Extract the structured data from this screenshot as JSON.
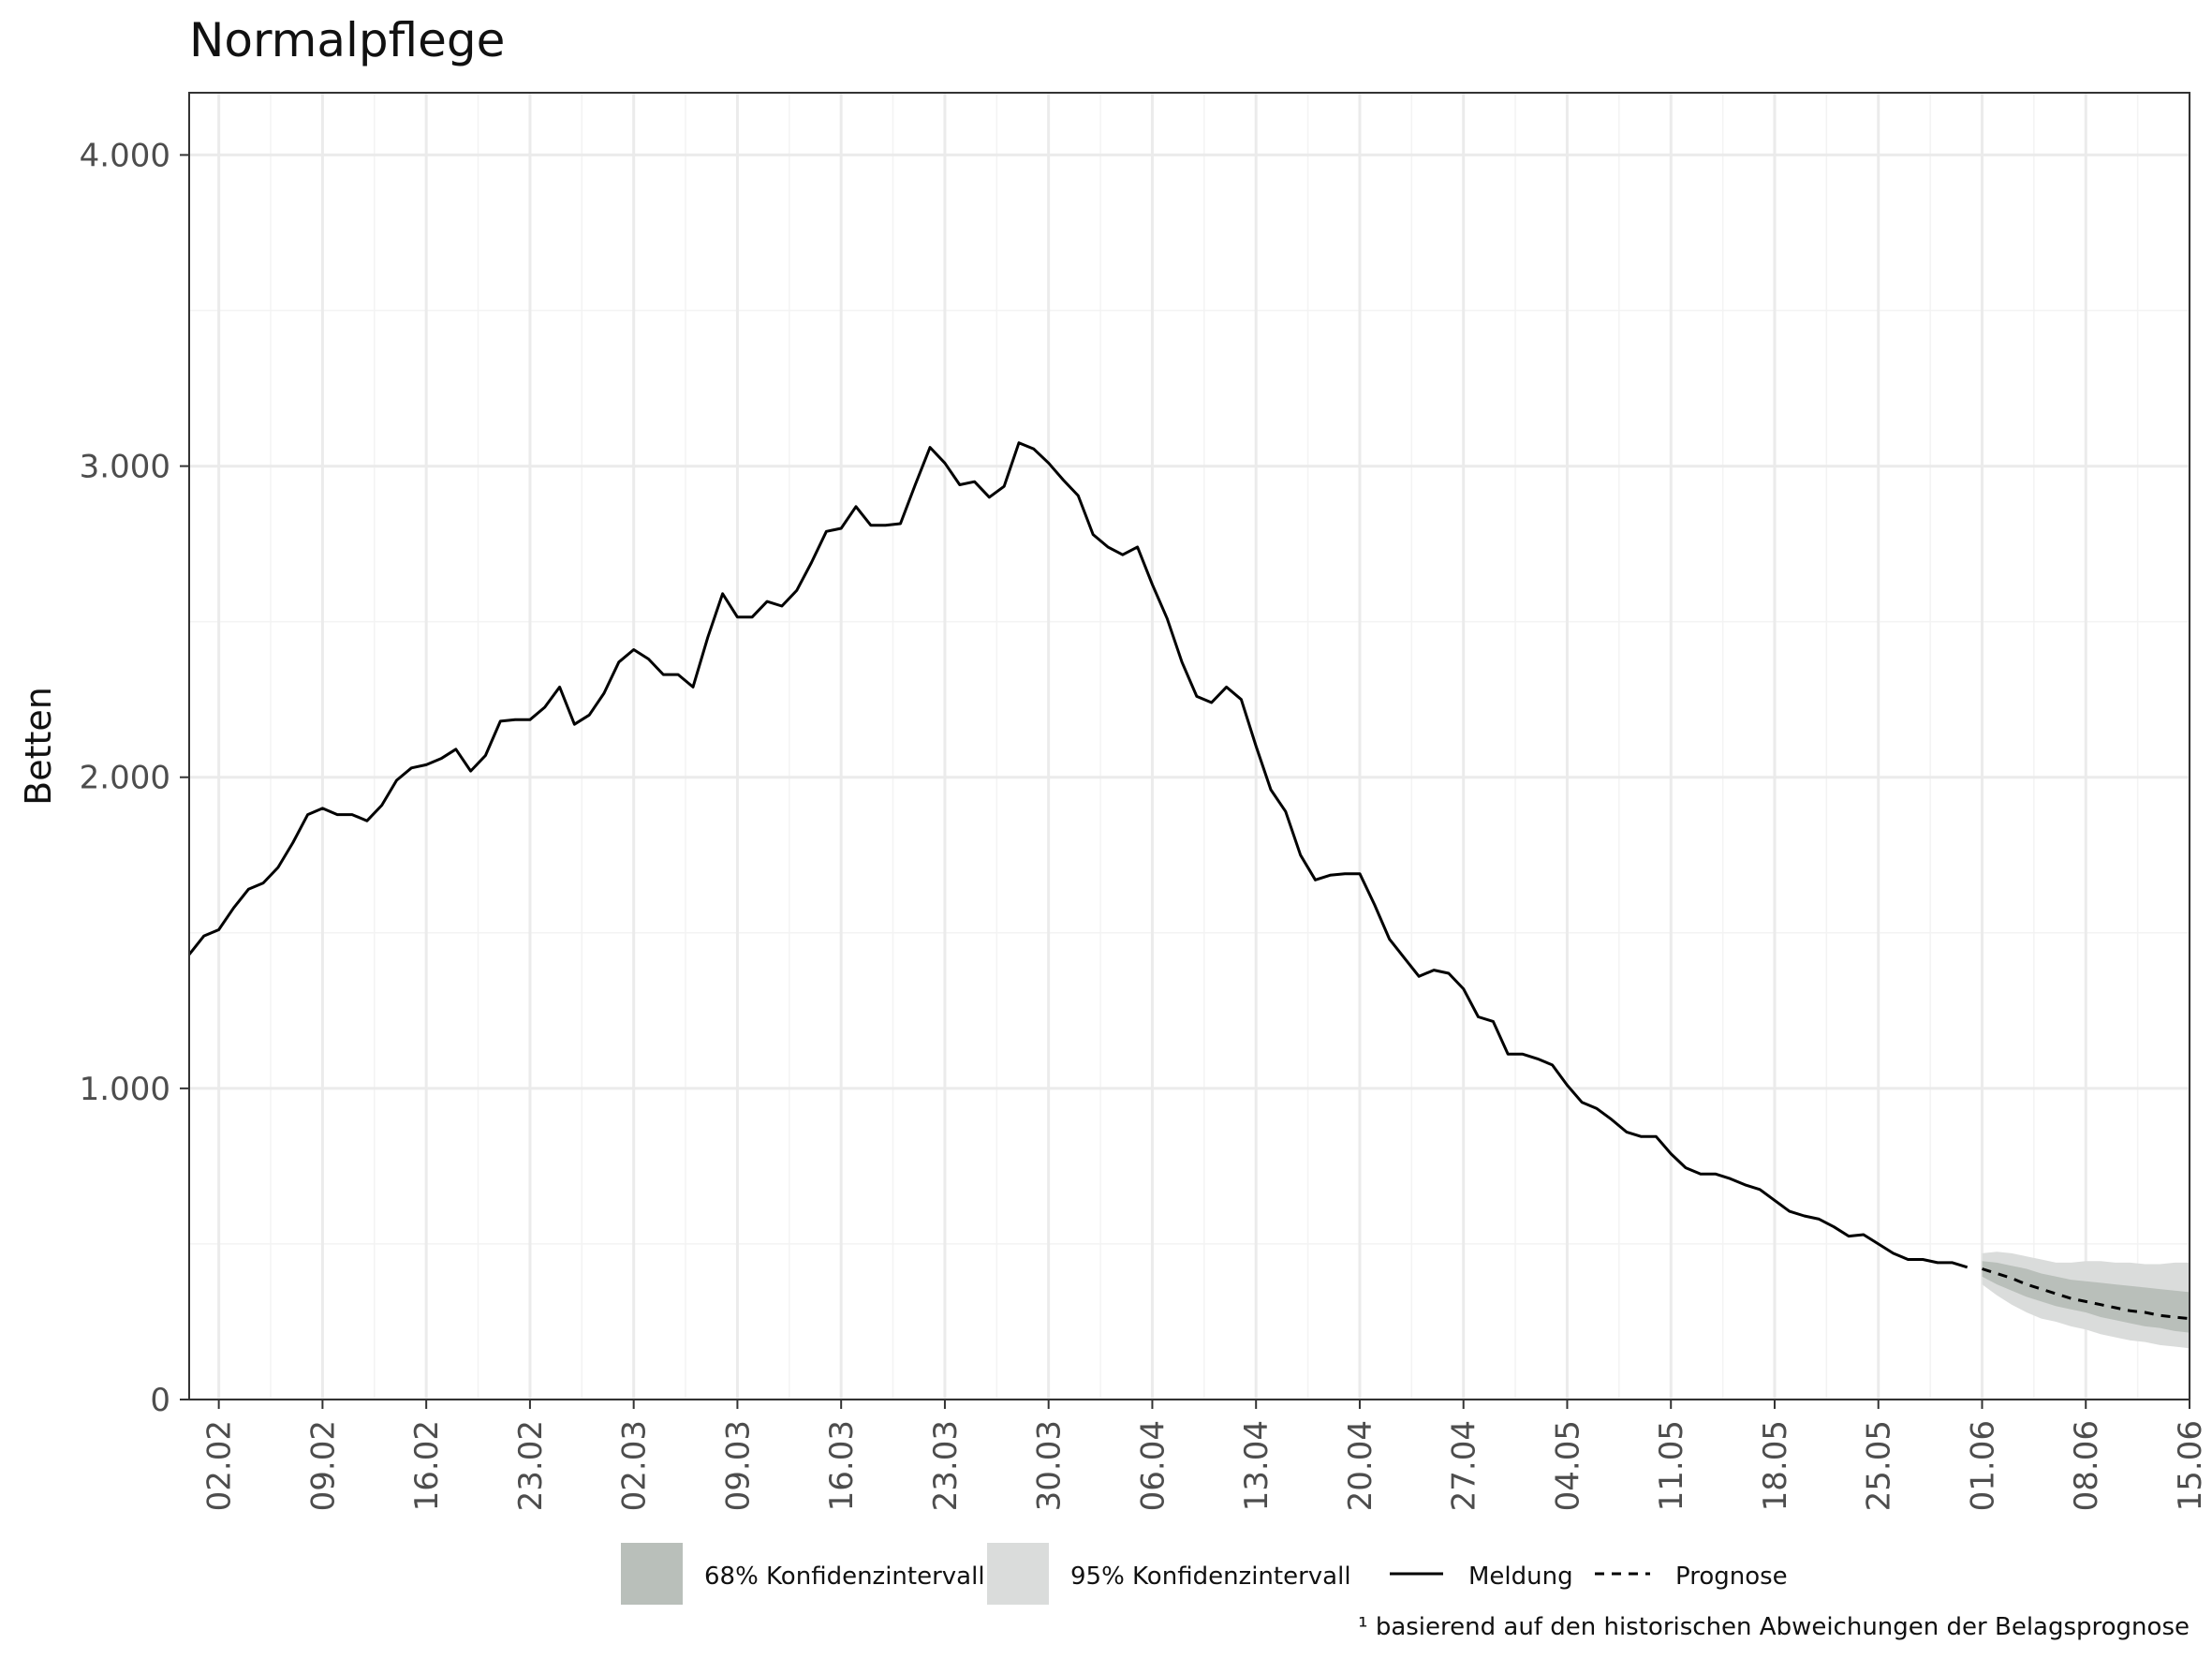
{
  "chart_data": {
    "type": "line",
    "title": "Normalpflege",
    "ylabel": "Betten",
    "xlabel": "",
    "ylim": [
      0,
      4200
    ],
    "yticks": [
      0,
      1000,
      2000,
      3000,
      4000
    ],
    "ytick_labels": [
      "0",
      "1.000",
      "2.000",
      "3.000",
      "4.000"
    ],
    "x_date_range": [
      "2021-01-31",
      "2021-06-15"
    ],
    "xticks": [
      "2021-02-02",
      "2021-02-09",
      "2021-02-16",
      "2021-02-23",
      "2021-03-02",
      "2021-03-09",
      "2021-03-16",
      "2021-03-23",
      "2021-03-30",
      "2021-04-06",
      "2021-04-13",
      "2021-04-20",
      "2021-04-27",
      "2021-05-04",
      "2021-05-11",
      "2021-05-18",
      "2021-05-25",
      "2021-06-01",
      "2021-06-08",
      "2021-06-15"
    ],
    "xtick_labels": [
      "02.02",
      "09.02",
      "16.02",
      "23.02",
      "02.03",
      "09.03",
      "16.03",
      "23.03",
      "30.03",
      "06.04",
      "13.04",
      "20.04",
      "27.04",
      "04.05",
      "11.05",
      "18.05",
      "25.05",
      "01.06",
      "08.06",
      "15.06"
    ],
    "grid": true,
    "legend_position": "bottom",
    "colors": {
      "line": "#000000",
      "ci68": "#b9bfba",
      "ci95": "#dadcdb",
      "grid": "#ebebeb",
      "panel_border": "#333333"
    },
    "series": [
      {
        "name": "Meldung",
        "style": "solid",
        "start_date": "2021-01-31",
        "values": [
          1430,
          1490,
          1510,
          1580,
          1640,
          1660,
          1710,
          1790,
          1880,
          1900,
          1880,
          1880,
          1860,
          1910,
          1990,
          2030,
          2040,
          2060,
          2090,
          2020,
          2070,
          2180,
          2185,
          2185,
          2225,
          2290,
          2170,
          2200,
          2270,
          2370,
          2410,
          2380,
          2330,
          2330,
          2290,
          2450,
          2590,
          2515,
          2515,
          2565,
          2550,
          2600,
          2690,
          2790,
          2800,
          2870,
          2810,
          2810,
          2815,
          2940,
          3060,
          3010,
          2940,
          2950,
          2900,
          2935,
          3075,
          3055,
          3010,
          2955,
          2905,
          2780,
          2740,
          2715,
          2740,
          2620,
          2510,
          2370,
          2260,
          2240,
          2290,
          2250,
          2100,
          1960,
          1890,
          1750,
          1670,
          1685,
          1690,
          1690,
          1590,
          1480,
          1420,
          1360,
          1380,
          1370,
          1320,
          1230,
          1215,
          1110,
          1110,
          1095,
          1075,
          1010,
          955,
          935,
          900,
          860,
          845,
          845,
          790,
          745,
          725,
          725,
          710,
          690,
          675,
          640,
          605,
          590,
          580,
          555,
          525,
          530,
          500,
          470,
          450,
          450,
          440,
          440,
          425
        ]
      },
      {
        "name": "Prognose",
        "style": "dashed",
        "start_date": "2021-06-01",
        "values": [
          420,
          405,
          390,
          370,
          355,
          340,
          325,
          315,
          305,
          295,
          285,
          280,
          270,
          265,
          260
        ]
      }
    ],
    "confidence_bands": [
      {
        "name": "68% Konfidenzintervall",
        "start_date": "2021-06-01",
        "lower": [
          395,
          370,
          350,
          330,
          315,
          300,
          290,
          280,
          265,
          255,
          245,
          235,
          230,
          220,
          215
        ],
        "upper": [
          445,
          440,
          430,
          420,
          405,
          395,
          385,
          380,
          375,
          370,
          365,
          360,
          355,
          350,
          345
        ]
      },
      {
        "name": "95% Konfidenzintervall",
        "start_date": "2021-06-01",
        "lower": [
          370,
          335,
          305,
          280,
          260,
          250,
          235,
          225,
          210,
          200,
          190,
          185,
          175,
          170,
          165
        ],
        "upper": [
          470,
          475,
          470,
          460,
          450,
          440,
          440,
          445,
          445,
          440,
          440,
          435,
          435,
          440,
          440
        ]
      }
    ]
  },
  "legend": {
    "ci68_label": "68% Konfidenzintervall",
    "ci95_label": "95% Konfidenzintervall",
    "meldung_label": "Meldung",
    "prognose_label": "Prognose"
  },
  "footnote": "¹ basierend auf den historischen Abweichungen der Belagsprognose"
}
